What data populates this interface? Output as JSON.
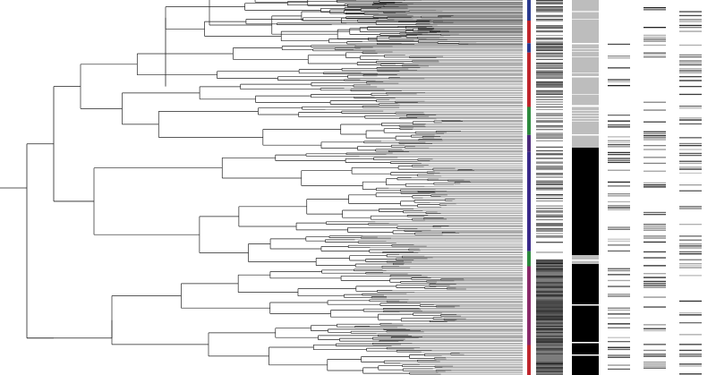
{
  "figure": {
    "kind": "phylogenetic-tree-with-annotation-tracks",
    "background": "#ffffff",
    "tree": {
      "branch_color": "#222222",
      "tip_fill_color": "#555555",
      "light_branch_color": "#999999"
    },
    "clade_strip": {
      "segments": [
        {
          "clade": "clade-1",
          "color": "#2b3a8f",
          "from": 0.0,
          "to": 0.055
        },
        {
          "clade": "clade-2",
          "color": "#c0262d",
          "from": 0.055,
          "to": 0.115
        },
        {
          "clade": "clade-3",
          "color": "#2b3a8f",
          "from": 0.115,
          "to": 0.14
        },
        {
          "clade": "clade-4",
          "color": "#c0262d",
          "from": 0.14,
          "to": 0.285
        },
        {
          "clade": "clade-5",
          "color": "#2d8a3e",
          "from": 0.285,
          "to": 0.36
        },
        {
          "clade": "clade-6",
          "color": "#4b2a7a",
          "from": 0.36,
          "to": 0.405
        },
        {
          "clade": "clade-7",
          "color": "#3a2a8a",
          "from": 0.405,
          "to": 0.67
        },
        {
          "clade": "clade-8",
          "color": "#2d8a3e",
          "from": 0.67,
          "to": 0.71
        },
        {
          "clade": "clade-9",
          "color": "#8a2a6a",
          "from": 0.71,
          "to": 0.92
        },
        {
          "clade": "clade-10",
          "color": "#c0262d",
          "from": 0.92,
          "to": 1.0
        }
      ]
    },
    "tracks": [
      {
        "name": "track-1",
        "style": "dense-gray",
        "base_color": "#ffffff",
        "mark_color": "#333333"
      },
      {
        "name": "track-2",
        "style": "block",
        "base_color": "#bdbdbd",
        "mark_color": "#000000"
      },
      {
        "name": "track-3",
        "style": "sparse",
        "base_color": "#ffffff",
        "mark_color": "#444444"
      },
      {
        "name": "track-4",
        "style": "sparse",
        "base_color": "#ffffff",
        "mark_color": "#333333"
      },
      {
        "name": "track-5",
        "style": "sparse",
        "base_color": "#ffffff",
        "mark_color": "#555555"
      }
    ]
  }
}
